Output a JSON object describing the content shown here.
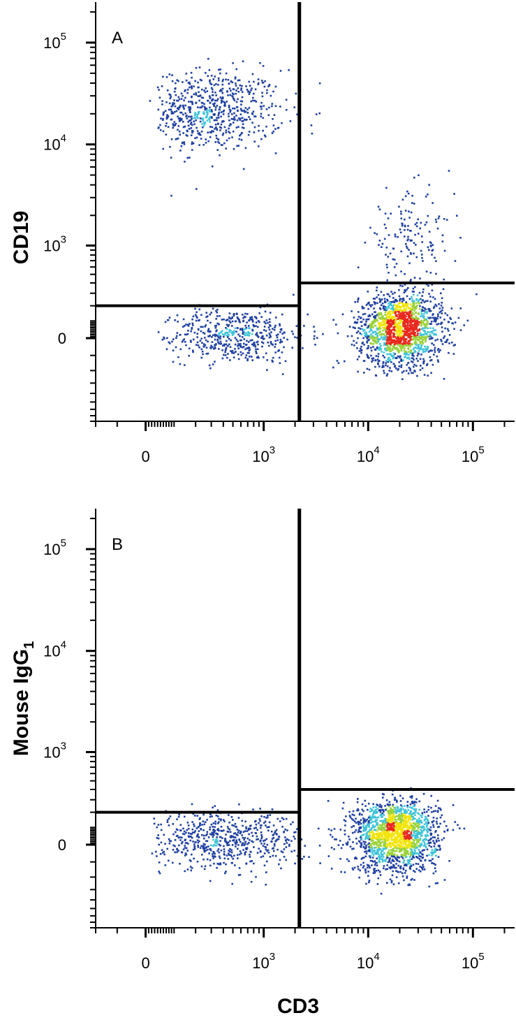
{
  "chart_data": [
    {
      "type": "scatter",
      "panel_label": "A",
      "xlabel": "",
      "ylabel": "CD19",
      "x_scale": "biexponential",
      "y_scale": "biexponential",
      "xlim": [
        -200,
        250000
      ],
      "ylim": [
        -800,
        250000
      ],
      "x_ticks": [
        {
          "value": 0,
          "base": "0",
          "exp": ""
        },
        {
          "value": 1000,
          "base": "10",
          "exp": "3"
        },
        {
          "value": 10000,
          "base": "10",
          "exp": "4"
        },
        {
          "value": 100000,
          "base": "10",
          "exp": "5"
        }
      ],
      "y_ticks": [
        {
          "value": 0,
          "base": "0",
          "exp": ""
        },
        {
          "value": 1000,
          "base": "10",
          "exp": "3"
        },
        {
          "value": 10000,
          "base": "10",
          "exp": "4"
        },
        {
          "value": 100000,
          "base": "10",
          "exp": "5"
        }
      ],
      "quadrant_gates": {
        "x_split": 2200,
        "y_split_left": 200,
        "y_split_right": 400
      },
      "populations": [
        {
          "name": "",
          "x_center": 300,
          "y_center": 22000,
          "x_spread": 0.35,
          "y_spread": 0.2,
          "count": 650
        },
        {
          "name": "",
          "x_center": 500,
          "y_center": 20,
          "x_spread": 0.35,
          "y_spread": 80,
          "count": 500
        },
        {
          "name": "",
          "x_center": 20000,
          "y_center": 60,
          "x_spread": 0.2,
          "y_spread": 110,
          "count": 1600
        },
        {
          "name": "",
          "x_center": 25000,
          "y_center": 1100,
          "x_spread": 0.2,
          "y_spread": 0.25,
          "count": 160
        }
      ],
      "grid": false,
      "legend": "none"
    },
    {
      "type": "scatter",
      "panel_label": "B",
      "xlabel": "CD3",
      "ylabel": "Mouse IgG",
      "ylabel_subscript": "1",
      "x_scale": "biexponential",
      "y_scale": "biexponential",
      "xlim": [
        -200,
        250000
      ],
      "ylim": [
        -800,
        250000
      ],
      "x_ticks": [
        {
          "value": 0,
          "base": "0",
          "exp": ""
        },
        {
          "value": 1000,
          "base": "10",
          "exp": "3"
        },
        {
          "value": 10000,
          "base": "10",
          "exp": "4"
        },
        {
          "value": 100000,
          "base": "10",
          "exp": "5"
        }
      ],
      "y_ticks": [
        {
          "value": 0,
          "base": "0",
          "exp": ""
        },
        {
          "value": 1000,
          "base": "10",
          "exp": "3"
        },
        {
          "value": 10000,
          "base": "10",
          "exp": "4"
        },
        {
          "value": 100000,
          "base": "10",
          "exp": "5"
        }
      ],
      "quadrant_gates": {
        "x_split": 2200,
        "y_split_left": 200,
        "y_split_right": 400
      },
      "populations": [
        {
          "name": "",
          "x_center": 400,
          "y_center": 30,
          "x_spread": 0.4,
          "y_spread": 80,
          "count": 600
        },
        {
          "name": "",
          "x_center": 18000,
          "y_center": 60,
          "x_spread": 0.2,
          "y_spread": 110,
          "count": 1700
        }
      ],
      "grid": false,
      "legend": "none"
    }
  ],
  "colors": {
    "axis": "#000000",
    "gate": "#000000",
    "density_low": "#1f3fa0",
    "density_mid": "#3fc4d8",
    "density_midhigh": "#9ad23a",
    "density_high": "#f2e40c",
    "density_peak": "#e8281e"
  }
}
